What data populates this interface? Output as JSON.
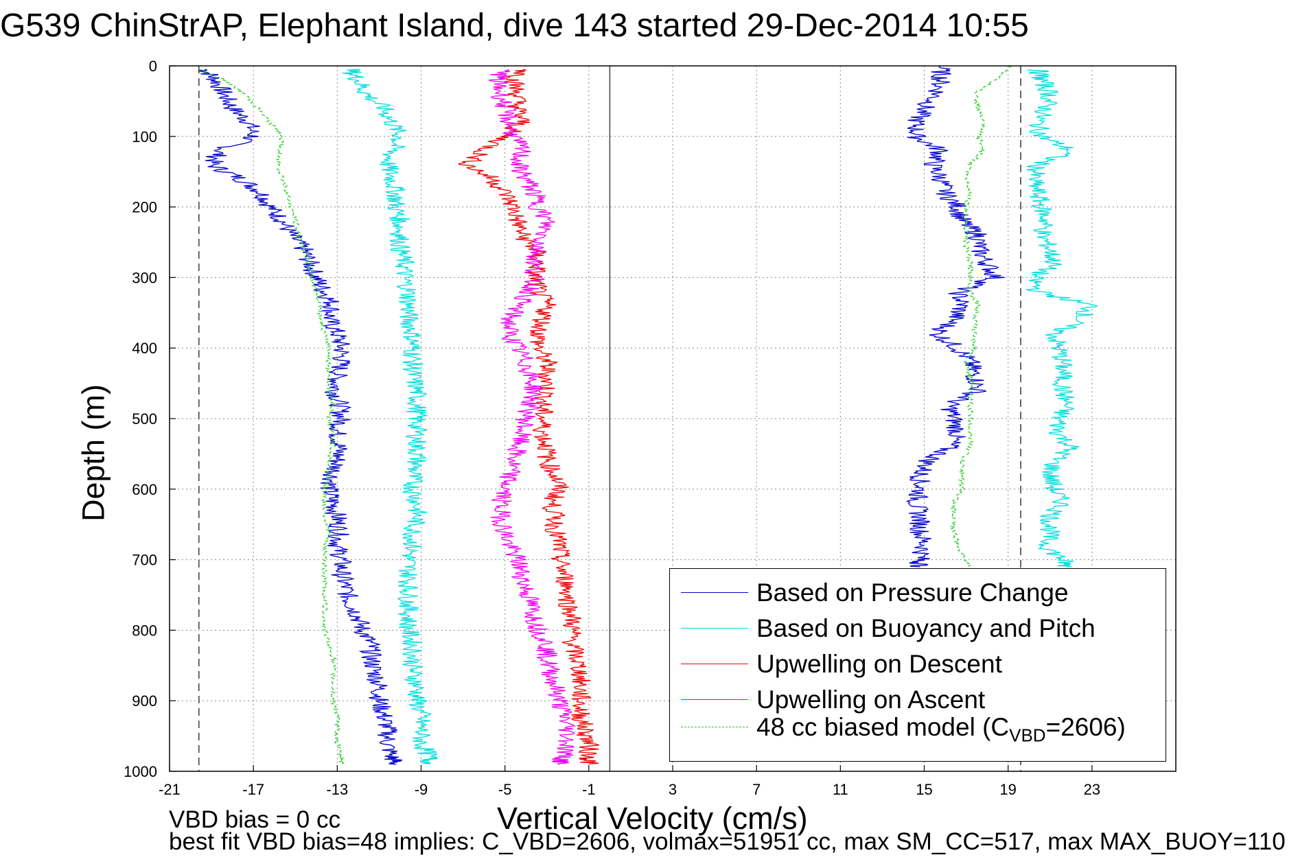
{
  "title": "G539 ChinStrAP, Elephant Island, dive 143 started 29-Dec-2014 10:55",
  "chart_data": {
    "type": "line",
    "xlabel": "Vertical Velocity (cm/s)",
    "ylabel": "Depth (m)",
    "xlim": [
      -21,
      27
    ],
    "ylim": [
      0,
      1000
    ],
    "y_reversed": true,
    "grid": true,
    "xticks": [
      -21,
      -17,
      -13,
      -9,
      -5,
      -1,
      3,
      7,
      11,
      15,
      19,
      23
    ],
    "yticks": [
      0,
      100,
      200,
      300,
      400,
      500,
      600,
      700,
      800,
      900,
      1000
    ],
    "legend_position": "bottom-right",
    "reference_lines": {
      "dashed_x": [
        -19.6,
        19.6
      ],
      "solid_x": [
        0
      ]
    },
    "series": [
      {
        "name": "Based on Pressure Change",
        "color": "#0000cc",
        "segments": [
          {
            "depth": [
              5,
              20,
              40,
              60,
              80,
              100,
              120,
              140,
              160,
              180,
              200,
              220,
              240,
              260,
              280,
              300,
              320,
              340,
              360,
              380,
              400,
              420,
              440,
              460,
              480,
              500,
              520,
              540,
              560,
              580,
              600,
              620,
              640,
              660,
              680,
              700,
              720,
              740,
              760,
              780,
              800,
              820,
              840,
              860,
              880,
              900,
              920,
              940,
              960,
              980,
              990
            ],
            "x": [
              -19.3,
              -18.8,
              -18.4,
              -18.0,
              -17.2,
              -17.0,
              -18.6,
              -19.0,
              -17.6,
              -16.6,
              -16.2,
              -15.6,
              -15.2,
              -14.6,
              -14.3,
              -14.0,
              -13.6,
              -13.2,
              -13.4,
              -13.0,
              -12.8,
              -12.8,
              -13.0,
              -13.1,
              -12.9,
              -12.8,
              -13.0,
              -12.9,
              -13.0,
              -13.2,
              -13.4,
              -13.2,
              -13.0,
              -12.9,
              -13.0,
              -12.8,
              -12.8,
              -12.6,
              -12.4,
              -12.0,
              -11.8,
              -11.4,
              -11.4,
              -11.2,
              -11.0,
              -11.0,
              -10.8,
              -10.6,
              -10.6,
              -10.4,
              -10.2
            ]
          },
          {
            "depth": [
              0,
              20,
              40,
              60,
              80,
              100,
              120,
              140,
              160,
              180,
              200,
              220,
              240,
              260,
              280,
              300,
              320,
              340,
              360,
              380,
              400,
              420,
              440,
              460,
              480,
              500,
              520,
              540,
              560,
              580,
              600,
              620,
              640,
              660,
              680,
              700,
              710
            ],
            "x": [
              15.8,
              15.8,
              15.6,
              15.0,
              14.6,
              14.6,
              15.8,
              15.4,
              15.8,
              16.0,
              16.6,
              16.8,
              17.6,
              17.6,
              18.0,
              18.4,
              16.6,
              16.8,
              16.4,
              15.6,
              16.6,
              17.2,
              17.4,
              17.6,
              16.2,
              16.4,
              16.6,
              16.2,
              15.2,
              14.8,
              14.8,
              14.6,
              14.8,
              14.8,
              15.0,
              14.8,
              14.8
            ]
          }
        ]
      },
      {
        "name": "Based on Buoyancy and Pitch",
        "color": "#00dddd",
        "segments": [
          {
            "depth": [
              5,
              20,
              40,
              60,
              80,
              100,
              120,
              140,
              160,
              180,
              200,
              220,
              240,
              260,
              280,
              300,
              320,
              340,
              360,
              380,
              400,
              420,
              440,
              460,
              480,
              500,
              520,
              540,
              560,
              580,
              600,
              620,
              640,
              660,
              680,
              700,
              720,
              740,
              760,
              780,
              800,
              820,
              840,
              860,
              880,
              900,
              920,
              940,
              960,
              980,
              990
            ],
            "x": [
              -12.4,
              -12.0,
              -11.6,
              -10.8,
              -10.4,
              -10.0,
              -10.4,
              -10.6,
              -10.4,
              -10.2,
              -10.2,
              -10.0,
              -10.0,
              -10.0,
              -9.8,
              -9.8,
              -9.6,
              -9.6,
              -9.6,
              -9.4,
              -9.4,
              -9.4,
              -9.4,
              -9.2,
              -9.2,
              -9.2,
              -9.2,
              -9.2,
              -9.2,
              -9.4,
              -9.4,
              -9.2,
              -9.2,
              -9.4,
              -9.4,
              -9.6,
              -9.6,
              -9.6,
              -9.6,
              -9.6,
              -9.6,
              -9.4,
              -9.4,
              -9.4,
              -9.2,
              -9.2,
              -9.0,
              -9.0,
              -9.0,
              -8.6,
              -8.6
            ]
          },
          {
            "depth": [
              5,
              20,
              40,
              60,
              80,
              100,
              120,
              140,
              160,
              180,
              200,
              220,
              240,
              260,
              280,
              300,
              320,
              340,
              360,
              380,
              400,
              420,
              440,
              460,
              480,
              500,
              520,
              540,
              560,
              580,
              600,
              620,
              640,
              660,
              680,
              700,
              710
            ],
            "x": [
              20.4,
              20.6,
              21.0,
              20.8,
              20.4,
              20.6,
              22.0,
              20.4,
              20.2,
              20.4,
              20.6,
              20.8,
              20.6,
              21.0,
              21.2,
              20.2,
              20.4,
              23.0,
              22.4,
              21.2,
              21.4,
              21.6,
              21.6,
              21.6,
              21.8,
              21.4,
              21.4,
              22.0,
              21.2,
              21.0,
              21.2,
              21.6,
              21.0,
              21.0,
              20.8,
              21.6,
              21.8
            ]
          }
        ]
      },
      {
        "name": "Upwelling on Descent",
        "color": "#ee0000",
        "segments": [
          {
            "depth": [
              5,
              20,
              40,
              60,
              80,
              100,
              120,
              140,
              160,
              180,
              200,
              220,
              240,
              260,
              280,
              300,
              320,
              340,
              360,
              380,
              400,
              420,
              440,
              460,
              480,
              500,
              520,
              540,
              560,
              580,
              600,
              620,
              640,
              660,
              680,
              700,
              720,
              740,
              760,
              780,
              800,
              820,
              840,
              860,
              880,
              900,
              920,
              940,
              960,
              980,
              990
            ],
            "x": [
              -4.0,
              -4.6,
              -4.4,
              -4.4,
              -4.2,
              -5.0,
              -6.0,
              -6.8,
              -5.6,
              -5.0,
              -4.6,
              -4.4,
              -4.2,
              -3.6,
              -3.4,
              -3.6,
              -3.4,
              -3.0,
              -3.2,
              -3.4,
              -3.4,
              -3.0,
              -3.0,
              -3.0,
              -3.2,
              -3.2,
              -3.2,
              -3.0,
              -3.0,
              -2.6,
              -2.4,
              -2.8,
              -2.6,
              -2.6,
              -2.4,
              -2.4,
              -2.2,
              -2.0,
              -2.0,
              -1.8,
              -1.8,
              -1.8,
              -1.6,
              -1.4,
              -1.4,
              -1.4,
              -1.4,
              -1.2,
              -1.0,
              -1.0,
              -1.0
            ]
          }
        ]
      },
      {
        "name": "Upwelling on Ascent",
        "color": "#ee00ee",
        "segments": [
          {
            "depth": [
              5,
              20,
              40,
              60,
              80,
              100,
              120,
              140,
              160,
              180,
              200,
              220,
              240,
              260,
              280,
              300,
              320,
              340,
              360,
              380,
              400,
              420,
              440,
              460,
              480,
              500,
              520,
              540,
              560,
              580,
              600,
              620,
              640,
              660,
              680,
              700,
              720,
              740,
              760,
              780,
              800,
              820,
              840,
              860,
              880,
              900,
              920,
              940,
              960,
              980,
              990
            ],
            "x": [
              -5.0,
              -5.4,
              -5.2,
              -5.0,
              -4.8,
              -4.6,
              -4.2,
              -4.4,
              -4.0,
              -3.6,
              -3.4,
              -3.0,
              -3.2,
              -3.4,
              -3.6,
              -3.6,
              -3.8,
              -4.4,
              -4.8,
              -4.8,
              -4.4,
              -4.0,
              -3.8,
              -3.6,
              -3.8,
              -4.0,
              -4.2,
              -4.4,
              -4.6,
              -4.8,
              -5.0,
              -5.2,
              -5.2,
              -5.0,
              -4.8,
              -4.4,
              -4.2,
              -4.0,
              -3.8,
              -3.6,
              -3.4,
              -3.0,
              -3.0,
              -2.8,
              -2.6,
              -2.4,
              -2.2,
              -2.0,
              -2.0,
              -2.2,
              -2.4
            ]
          }
        ]
      },
      {
        "name": "48 cc biased model",
        "legend_label": "48 cc biased model (C",
        "legend_sub": "VBD",
        "legend_suffix": "=2606)",
        "color": "#22cc22",
        "dashed": true,
        "segments": [
          {
            "depth": [
              5,
              20,
              40,
              60,
              80,
              100,
              120,
              140,
              160,
              180,
              200,
              220,
              240,
              260,
              280,
              300,
              320,
              340,
              360,
              380,
              400,
              420,
              440,
              460,
              480,
              500,
              520,
              540,
              560,
              580,
              600,
              620,
              640,
              660,
              680,
              700,
              720,
              740,
              760,
              780,
              800,
              820,
              840,
              860,
              880,
              900,
              920,
              940,
              960,
              980,
              990
            ],
            "x": [
              -19.6,
              -18.4,
              -17.4,
              -16.8,
              -16.2,
              -15.6,
              -15.8,
              -15.8,
              -15.6,
              -15.4,
              -15.2,
              -15.0,
              -14.8,
              -14.6,
              -14.4,
              -14.2,
              -14.0,
              -13.8,
              -13.8,
              -13.6,
              -13.4,
              -13.4,
              -13.4,
              -13.4,
              -13.2,
              -13.4,
              -13.2,
              -13.2,
              -13.4,
              -13.4,
              -13.6,
              -13.6,
              -13.6,
              -13.4,
              -13.6,
              -13.6,
              -13.6,
              -13.6,
              -13.6,
              -13.6,
              -13.6,
              -13.4,
              -13.2,
              -13.2,
              -13.2,
              -13.2,
              -13.0,
              -13.0,
              -13.0,
              -12.8,
              -12.8
            ]
          },
          {
            "depth": [
              0,
              20,
              40,
              60,
              80,
              100,
              120,
              140,
              160,
              180,
              200,
              220,
              240,
              260,
              280,
              300,
              320,
              340,
              360,
              380,
              400,
              420,
              440,
              460,
              480,
              500,
              520,
              540,
              560,
              580,
              600,
              620,
              640,
              660,
              680,
              700,
              710
            ],
            "x": [
              19.2,
              18.4,
              17.4,
              17.6,
              17.8,
              17.6,
              17.8,
              17.2,
              17.0,
              17.2,
              17.0,
              17.0,
              17.0,
              17.0,
              17.2,
              17.2,
              17.2,
              17.6,
              17.4,
              17.4,
              17.4,
              17.0,
              17.2,
              17.2,
              17.2,
              17.2,
              17.2,
              17.2,
              16.8,
              16.8,
              16.8,
              16.4,
              16.4,
              16.4,
              16.6,
              17.0,
              17.2
            ]
          }
        ]
      }
    ]
  },
  "annotations": {
    "vbd_bias": "VBD bias = 0 cc",
    "best_fit": "best fit VBD bias=48 implies: C_VBD=2606, volmax=51951 cc, max SM_CC=517, max MAX_BUOY=110"
  }
}
